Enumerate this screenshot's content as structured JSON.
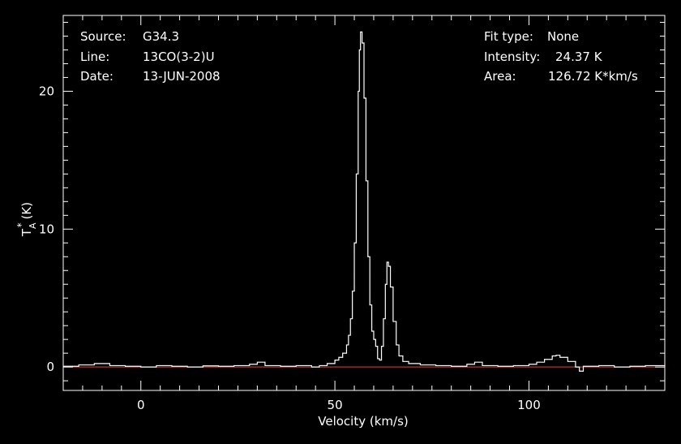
{
  "info": {
    "source_label": "Source:",
    "source_value": "G34.3",
    "line_label": "Line:",
    "line_value": "13CO(3-2)U",
    "date_label": "Date:",
    "date_value": "13-JUN-2008",
    "fit_label": "Fit type:",
    "fit_value": "None",
    "intensity_label": "Intensity:",
    "intensity_value": "24.37 K",
    "area_label": "Area:",
    "area_value": "126.72 K*km/s"
  },
  "colors": {
    "background": "#000000",
    "axes": "#ffffff",
    "spectrum": "#ffffff",
    "baseline": "#c03030"
  },
  "chart_data": {
    "type": "line",
    "xlabel": "Velocity (km/s)",
    "ylabel_main": "T",
    "ylabel_sup": "*",
    "ylabel_sub": "A",
    "ylabel_unit": "(K)",
    "xlim": [
      -20,
      135
    ],
    "ylim": [
      -1.7,
      25.5
    ],
    "xticks": [
      0,
      50,
      100
    ],
    "yticks": [
      0,
      10,
      20
    ],
    "grid": false,
    "series": [
      {
        "points": [
          [
            -20,
            0.05
          ],
          [
            -16,
            0.15
          ],
          [
            -12,
            0.25
          ],
          [
            -8,
            0.1
          ],
          [
            -4,
            0.05
          ],
          [
            0,
            0.0
          ],
          [
            4,
            0.1
          ],
          [
            8,
            0.05
          ],
          [
            12,
            0.0
          ],
          [
            16,
            0.08
          ],
          [
            20,
            0.05
          ],
          [
            24,
            0.1
          ],
          [
            28,
            0.2
          ],
          [
            30,
            0.35
          ],
          [
            32,
            0.1
          ],
          [
            36,
            0.05
          ],
          [
            40,
            0.1
          ],
          [
            44,
            0.0
          ],
          [
            46,
            0.1
          ],
          [
            48,
            0.25
          ],
          [
            50,
            0.5
          ],
          [
            51,
            0.7
          ],
          [
            52,
            1.0
          ],
          [
            53,
            1.6
          ],
          [
            53.5,
            2.3
          ],
          [
            54,
            3.5
          ],
          [
            54.5,
            5.5
          ],
          [
            55,
            9.0
          ],
          [
            55.5,
            14.0
          ],
          [
            56,
            20.0
          ],
          [
            56.3,
            23.0
          ],
          [
            56.6,
            24.3
          ],
          [
            57,
            23.5
          ],
          [
            57.5,
            19.5
          ],
          [
            58,
            13.5
          ],
          [
            58.5,
            8.0
          ],
          [
            59,
            4.5
          ],
          [
            59.5,
            2.6
          ],
          [
            60,
            2.0
          ],
          [
            60.5,
            1.5
          ],
          [
            61,
            0.6
          ],
          [
            61.5,
            0.5
          ],
          [
            62,
            1.5
          ],
          [
            62.5,
            3.5
          ],
          [
            63,
            6.0
          ],
          [
            63.4,
            7.6
          ],
          [
            63.8,
            7.3
          ],
          [
            64.3,
            5.8
          ],
          [
            65,
            3.3
          ],
          [
            65.8,
            1.6
          ],
          [
            66.5,
            0.8
          ],
          [
            67.5,
            0.4
          ],
          [
            69,
            0.25
          ],
          [
            72,
            0.15
          ],
          [
            76,
            0.1
          ],
          [
            80,
            0.05
          ],
          [
            84,
            0.2
          ],
          [
            86,
            0.35
          ],
          [
            88,
            0.1
          ],
          [
            92,
            0.05
          ],
          [
            96,
            0.1
          ],
          [
            100,
            0.2
          ],
          [
            102,
            0.35
          ],
          [
            104,
            0.55
          ],
          [
            106,
            0.8
          ],
          [
            107,
            0.85
          ],
          [
            108,
            0.7
          ],
          [
            110,
            0.4
          ],
          [
            112,
            0.0
          ],
          [
            113,
            -0.3
          ],
          [
            114,
            0.05
          ],
          [
            118,
            0.1
          ],
          [
            122,
            0.0
          ],
          [
            126,
            0.05
          ],
          [
            130,
            0.1
          ],
          [
            135,
            0.05
          ]
        ]
      },
      {
        "points": [
          [
            -20,
            0
          ],
          [
            135,
            0
          ]
        ]
      }
    ]
  }
}
